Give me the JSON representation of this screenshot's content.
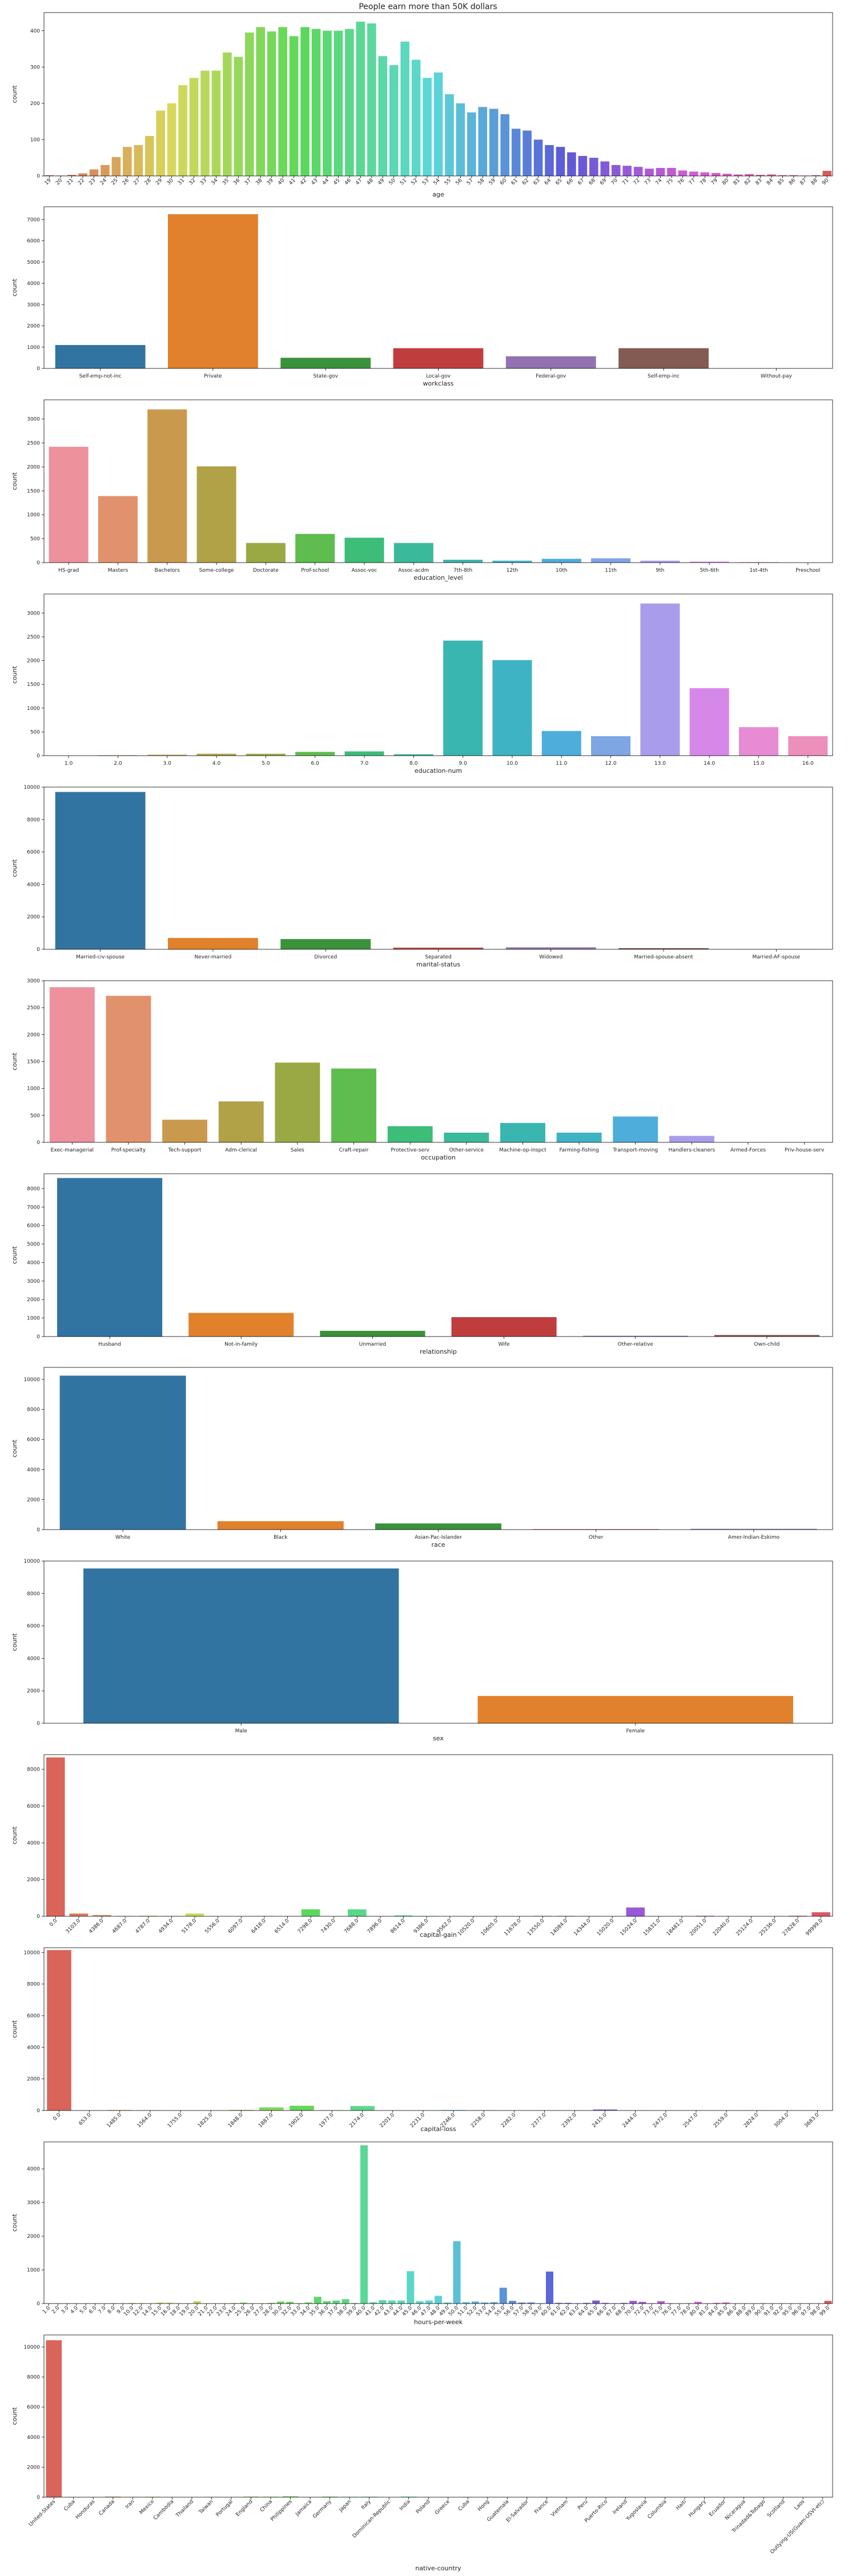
{
  "figure": {
    "title": "People earn more than 50K dollars"
  },
  "chart_data": [
    {
      "type": "bar",
      "xlabel": "age",
      "ylabel": "count",
      "ylim": [
        0,
        450
      ],
      "yticks": [
        0,
        100,
        200,
        300,
        400
      ],
      "categories": [
        "19",
        "20",
        "21",
        "22",
        "23",
        "24",
        "25",
        "26",
        "27",
        "28",
        "29",
        "30",
        "31",
        "32",
        "33",
        "34",
        "35",
        "36",
        "37",
        "38",
        "39",
        "40",
        "41",
        "42",
        "43",
        "44",
        "45",
        "46",
        "47",
        "48",
        "49",
        "50",
        "51",
        "52",
        "53",
        "54",
        "55",
        "56",
        "57",
        "58",
        "59",
        "60",
        "61",
        "62",
        "63",
        "64",
        "65",
        "66",
        "67",
        "68",
        "69",
        "70",
        "71",
        "72",
        "73",
        "74",
        "75",
        "76",
        "77",
        "78",
        "79",
        "80",
        "81",
        "82",
        "83",
        "84",
        "85",
        "86",
        "87",
        "88",
        "90"
      ],
      "values": [
        2,
        1,
        3,
        7,
        18,
        30,
        52,
        80,
        85,
        110,
        180,
        200,
        250,
        270,
        290,
        290,
        340,
        328,
        395,
        410,
        398,
        410,
        385,
        410,
        405,
        400,
        400,
        405,
        425,
        420,
        330,
        305,
        370,
        320,
        270,
        285,
        225,
        200,
        175,
        190,
        185,
        170,
        130,
        125,
        100,
        85,
        80,
        65,
        55,
        50,
        40,
        30,
        28,
        25,
        20,
        22,
        22,
        15,
        12,
        10,
        8,
        6,
        4,
        5,
        3,
        4,
        2,
        2,
        1,
        2,
        14
      ],
      "palette": "husl",
      "rotate_ticks": true
    },
    {
      "type": "bar",
      "xlabel": "workclass",
      "ylabel": "count",
      "ylim": [
        0,
        7600
      ],
      "yticks": [
        0,
        1000,
        2000,
        3000,
        4000,
        5000,
        6000,
        7000
      ],
      "categories": [
        "Self-emp-not-inc",
        "Private",
        "State-gov",
        "Local-gov",
        "Federal-gov",
        "Self-emp-inc",
        "Without-pay"
      ],
      "values": [
        1100,
        7250,
        500,
        950,
        570,
        950,
        3
      ],
      "colors": [
        "#3274a1",
        "#e1812c",
        "#3a923a",
        "#c03d3e",
        "#9372b2",
        "#845b53",
        "#d684bd"
      ]
    },
    {
      "type": "bar",
      "xlabel": "education_level",
      "ylabel": "count",
      "ylim": [
        0,
        3400
      ],
      "yticks": [
        0,
        500,
        1000,
        1500,
        2000,
        2500,
        3000
      ],
      "categories": [
        "HS-grad",
        "Masters",
        "Bachelors",
        "Some-college",
        "Doctorate",
        "Prof-school",
        "Assoc-voc",
        "Assoc-acdm",
        "7th-8th",
        "12th",
        "10th",
        "11th",
        "9th",
        "5th-6th",
        "1st-4th",
        "Preschool"
      ],
      "values": [
        2420,
        1390,
        3200,
        2010,
        410,
        600,
        520,
        410,
        60,
        40,
        80,
        90,
        40,
        20,
        10,
        0
      ],
      "colors": [
        "#ed919d",
        "#e1926d",
        "#c99a4d",
        "#b1a147",
        "#9ba944",
        "#5ebd4e",
        "#3cbd78",
        "#3bb99b",
        "#3ab6b0",
        "#3db3c4",
        "#4eaddb",
        "#7ea5e4",
        "#a99cea",
        "#d688e8",
        "#e68bd4",
        "#ec8fbb"
      ]
    },
    {
      "type": "bar",
      "xlabel": "education-num",
      "ylabel": "count",
      "ylim": [
        0,
        3400
      ],
      "yticks": [
        0,
        500,
        1000,
        1500,
        2000,
        2500,
        3000
      ],
      "categories": [
        "1.0",
        "2.0",
        "3.0",
        "4.0",
        "5.0",
        "6.0",
        "7.0",
        "8.0",
        "9.0",
        "10.0",
        "11.0",
        "12.0",
        "13.0",
        "14.0",
        "15.0",
        "16.0"
      ],
      "values": [
        0,
        10,
        20,
        40,
        40,
        80,
        90,
        30,
        2420,
        2010,
        520,
        410,
        3200,
        1420,
        600,
        410
      ],
      "colors": [
        "#ed919d",
        "#e1926d",
        "#c99a4d",
        "#b1a147",
        "#9ba944",
        "#5ebd4e",
        "#3cbd78",
        "#3bb99b",
        "#3ab6b0",
        "#3db3c4",
        "#4eaddb",
        "#7ea5e4",
        "#a99cea",
        "#d688e8",
        "#e68bd4",
        "#ec8fbb"
      ]
    },
    {
      "type": "bar",
      "xlabel": "marital-status",
      "ylabel": "count",
      "ylim": [
        0,
        10000
      ],
      "yticks": [
        0,
        2000,
        4000,
        6000,
        8000,
        10000
      ],
      "categories": [
        "Married-civ-spouse",
        "Never-married",
        "Divorced",
        "Separated",
        "Widowed",
        "Married-spouse-absent",
        "Married-AF-spouse"
      ],
      "values": [
        9700,
        700,
        630,
        100,
        120,
        70,
        15
      ],
      "colors": [
        "#3274a1",
        "#e1812c",
        "#3a923a",
        "#c03d3e",
        "#9372b2",
        "#845b53",
        "#d684bd"
      ]
    },
    {
      "type": "bar",
      "xlabel": "occupation",
      "ylabel": "count",
      "ylim": [
        0,
        3000
      ],
      "yticks": [
        0,
        500,
        1000,
        1500,
        2000,
        2500,
        3000
      ],
      "categories": [
        "Exec-managerial",
        "Prof-specialty",
        "Tech-support",
        "Adm-clerical",
        "Sales",
        "Craft-repair",
        "Protective-serv",
        "Other-service",
        "Machine-op-inspct",
        "Farming-fishing",
        "Transport-moving",
        "Handlers-cleaners",
        "Armed-Forces",
        "Priv-house-serv"
      ],
      "values": [
        2880,
        2720,
        420,
        760,
        1480,
        1370,
        300,
        180,
        360,
        180,
        480,
        120,
        2,
        3
      ],
      "colors": [
        "#ed919d",
        "#e1926d",
        "#c99a4d",
        "#b1a147",
        "#9ba944",
        "#5ebd4e",
        "#3cbd78",
        "#3bb99b",
        "#3ab6b0",
        "#3db3c4",
        "#4eaddb",
        "#a99cea",
        "#d688e8",
        "#ec8fbb"
      ]
    },
    {
      "type": "bar",
      "xlabel": "relationship",
      "ylabel": "count",
      "ylim": [
        0,
        8800
      ],
      "yticks": [
        0,
        1000,
        2000,
        3000,
        4000,
        5000,
        6000,
        7000,
        8000
      ],
      "categories": [
        "Husband",
        "Not-in-family",
        "Unmarried",
        "Wife",
        "Other-relative",
        "Own-child"
      ],
      "values": [
        8570,
        1280,
        310,
        1050,
        40,
        85
      ],
      "colors": [
        "#3274a1",
        "#e1812c",
        "#3a923a",
        "#c03d3e",
        "#9372b2",
        "#845b53"
      ]
    },
    {
      "type": "bar",
      "xlabel": "race",
      "ylabel": "count",
      "ylim": [
        0,
        10800
      ],
      "yticks": [
        0,
        2000,
        4000,
        6000,
        8000,
        10000
      ],
      "categories": [
        "White",
        "Black",
        "Asian-Pac-Islander",
        "Other",
        "Amer-Indian-Eskimo"
      ],
      "values": [
        10250,
        560,
        410,
        30,
        50
      ],
      "colors": [
        "#3274a1",
        "#e1812c",
        "#3a923a",
        "#c03d3e",
        "#9372b2"
      ]
    },
    {
      "type": "bar",
      "xlabel": "sex",
      "ylabel": "count",
      "ylim": [
        0,
        10000
      ],
      "yticks": [
        0,
        2000,
        4000,
        6000,
        8000,
        10000
      ],
      "categories": [
        "Male",
        "Female"
      ],
      "values": [
        9540,
        1680
      ],
      "colors": [
        "#3274a1",
        "#e1812c"
      ]
    },
    {
      "type": "bar",
      "xlabel": "capital-gain",
      "ylabel": "count",
      "ylim": [
        0,
        8800
      ],
      "yticks": [
        0,
        2000,
        4000,
        6000,
        8000
      ],
      "categories": [
        "0.0",
        "3103.0",
        "4386.0",
        "4687.0",
        "4787.0",
        "4934.0",
        "5178.0",
        "5556.0",
        "6097.0",
        "6418.0",
        "6514.0",
        "7298.0",
        "7430.0",
        "7688.0",
        "7896.0",
        "8614.0",
        "9386.0",
        "9562.0",
        "10520.0",
        "10605.0",
        "11678.0",
        "13550.0",
        "14084.0",
        "14344.0",
        "15020.0",
        "15024.0",
        "15831.0",
        "18481.0",
        "20051.0",
        "22040.0",
        "25124.0",
        "25236.0",
        "27828.0",
        "99999.0"
      ],
      "values": [
        8650,
        150,
        70,
        20,
        30,
        20,
        150,
        10,
        10,
        20,
        5,
        380,
        5,
        380,
        5,
        50,
        20,
        5,
        10,
        5,
        5,
        20,
        20,
        15,
        10,
        480,
        5,
        10,
        30,
        5,
        5,
        10,
        30,
        220
      ],
      "palette": "husl",
      "rotate_ticks": true
    },
    {
      "type": "bar",
      "xlabel": "capital-loss",
      "ylabel": "count",
      "ylim": [
        0,
        10300
      ],
      "yticks": [
        0,
        2000,
        4000,
        6000,
        8000,
        10000
      ],
      "categories": [
        "0.0",
        "653.0",
        "1485.0",
        "1564.0",
        "1755.0",
        "1825.0",
        "1848.0",
        "1887.0",
        "1902.0",
        "1977.0",
        "2174.0",
        "2201.0",
        "2231.0",
        "2246.0",
        "2258.0",
        "2282.0",
        "2377.0",
        "2392.0",
        "2415.0",
        "2444.0",
        "2472.0",
        "2547.0",
        "2559.0",
        "2824.0",
        "3004.0",
        "3683.0"
      ],
      "values": [
        10150,
        5,
        30,
        20,
        5,
        10,
        40,
        200,
        300,
        20,
        280,
        5,
        5,
        30,
        20,
        10,
        10,
        5,
        60,
        10,
        5,
        5,
        5,
        10,
        5,
        5
      ],
      "palette": "husl",
      "rotate_ticks": true
    },
    {
      "type": "bar",
      "xlabel": "hours-per-week",
      "ylabel": "count",
      "ylim": [
        0,
        4800
      ],
      "yticks": [
        0,
        1000,
        2000,
        3000,
        4000
      ],
      "categories": [
        "1.0",
        "2.0",
        "3.0",
        "4.0",
        "5.0",
        "6.0",
        "7.0",
        "8.0",
        "9.0",
        "10.0",
        "12.0",
        "14.0",
        "15.0",
        "16.0",
        "18.0",
        "19.0",
        "20.0",
        "21.0",
        "22.0",
        "23.0",
        "24.0",
        "25.0",
        "26.0",
        "27.0",
        "28.0",
        "30.0",
        "32.0",
        "33.0",
        "34.0",
        "35.0",
        "36.0",
        "37.0",
        "38.0",
        "39.0",
        "40.0",
        "41.0",
        "42.0",
        "43.0",
        "44.0",
        "45.0",
        "46.0",
        "47.0",
        "48.0",
        "49.0",
        "50.0",
        "51.0",
        "52.0",
        "53.0",
        "54.0",
        "55.0",
        "56.0",
        "57.0",
        "58.0",
        "59.0",
        "60.0",
        "61.0",
        "62.0",
        "63.0",
        "64.0",
        "65.0",
        "66.0",
        "67.0",
        "68.0",
        "70.0",
        "72.0",
        "73.0",
        "75.0",
        "76.0",
        "77.0",
        "78.0",
        "80.0",
        "81.0",
        "84.0",
        "85.0",
        "86.0",
        "88.0",
        "89.0",
        "90.0",
        "91.0",
        "92.0",
        "95.0",
        "96.0",
        "97.0",
        "98.0",
        "99.0"
      ],
      "values": [
        5,
        3,
        5,
        5,
        5,
        5,
        3,
        10,
        5,
        15,
        10,
        5,
        30,
        25,
        10,
        5,
        70,
        5,
        5,
        5,
        15,
        30,
        5,
        5,
        20,
        60,
        50,
        10,
        30,
        200,
        70,
        90,
        130,
        15,
        4700,
        40,
        100,
        90,
        90,
        960,
        70,
        90,
        230,
        30,
        1850,
        40,
        60,
        30,
        40,
        470,
        80,
        30,
        30,
        10,
        950,
        20,
        20,
        10,
        20,
        90,
        20,
        10,
        20,
        80,
        50,
        10,
        70,
        10,
        5,
        10,
        50,
        5,
        20,
        30,
        5,
        5,
        5,
        10,
        5,
        5,
        5,
        5,
        5,
        5,
        80
      ],
      "palette": "husl",
      "rotate_ticks": true
    },
    {
      "type": "bar",
      "xlabel": "native-country",
      "ylabel": "count",
      "ylim": [
        0,
        10800
      ],
      "yticks": [
        0,
        2000,
        4000,
        6000,
        8000,
        10000
      ],
      "categories": [
        "United-States",
        "Cuba",
        "Honduras",
        "Canada",
        "Iran",
        "Mexico",
        "Cambodia",
        "Thailand",
        "Taiwan",
        "Portugal",
        "England",
        "China",
        "Philippines",
        "Jamaica",
        "Germany",
        "Japan",
        "Italy",
        "Dominican-Republic",
        "India",
        "Poland",
        "Greece",
        "Cuba",
        "Hong",
        "Guatemala",
        "El-Salvador",
        "France",
        "Vietnam",
        "Peru",
        "Puerto-Rico",
        "Ireland",
        "Yugoslavia",
        "Columbia",
        "Haiti",
        "Hungary",
        "Ecuador",
        "Nicaragua",
        "Trinadad&Tobago",
        "Outlying-US(Guam-USVI-etc)",
        "Laos",
        "Scotland"
      ],
      "xticks_shown": [
        "United-States",
        "Cuba",
        "Honduras",
        "Canada",
        "Iran",
        "Mexico",
        "Cambodia",
        "Thailand",
        "Taiwan",
        "Portugal",
        "England",
        "China",
        "Philippines",
        "Jamaica",
        "Germany",
        "Japan",
        "Italy",
        "Dominican-Republic",
        "India",
        "Poland",
        "Greece",
        "Cuba",
        "Hong",
        "Guatemala",
        "El-Salvador",
        "France",
        "Vietnam",
        "Peru",
        "Puerto-Rico",
        "Ireland",
        "Yugoslavia",
        "Columbia",
        "Haiti",
        "Hungary",
        "Ecuador",
        "Nicaragua",
        "Trinadad&Tobago",
        "Scotland",
        "Laos",
        "Outlying-US(Guam-USVI-etc)"
      ],
      "values": [
        10450,
        10,
        5,
        40,
        20,
        30,
        5,
        5,
        20,
        10,
        40,
        30,
        60,
        10,
        40,
        25,
        30,
        5,
        40,
        10,
        10,
        10,
        10,
        5,
        10,
        15,
        5,
        5,
        10,
        5,
        5,
        5,
        5,
        5,
        5,
        5,
        5,
        3,
        3,
        3
      ],
      "palette": "husl",
      "rotate_ticks": true
    }
  ]
}
